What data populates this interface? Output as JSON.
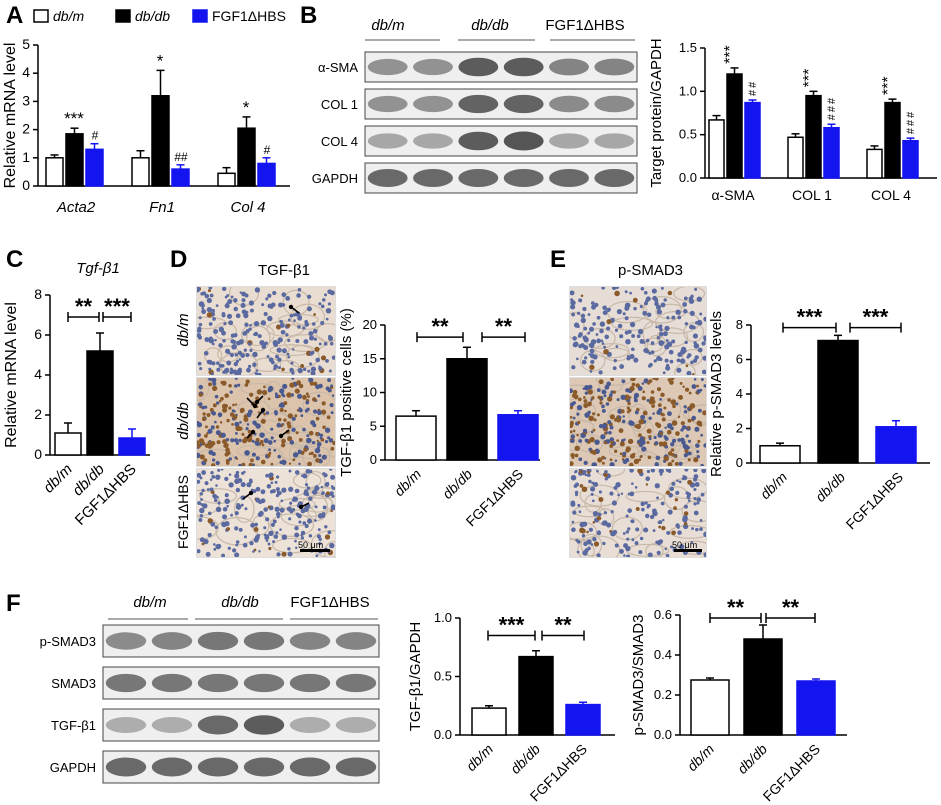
{
  "panels": {
    "A": {
      "letter": "A",
      "legend": [
        "db/m",
        "db/db",
        "FGF1ΔHBS"
      ],
      "genes": [
        "Acta2",
        "Fn1",
        "Col 4"
      ],
      "ylabel": "Relative mRNA level",
      "yticks": [
        "0",
        "1",
        "2",
        "3",
        "4",
        "5"
      ],
      "sig_star": [
        "***",
        "*",
        "*"
      ],
      "sig_hash": [
        "#",
        "##",
        "#"
      ]
    },
    "B": {
      "letter": "B",
      "groups": [
        "db/m",
        "db/db",
        "FGF1ΔHBS"
      ],
      "proteins": [
        "α-SMA",
        "COL 1",
        "COL 4",
        "GAPDH"
      ],
      "ylabel": "Target protein/GAPDH",
      "yticks": [
        "0.0",
        "0.5",
        "1.0",
        "1.5"
      ],
      "categories": [
        "α-SMA",
        "COL 1",
        "COL 4"
      ],
      "sig_star": [
        "***",
        "***",
        "***"
      ],
      "sig_hash": [
        "##",
        "###",
        "###"
      ]
    },
    "C": {
      "letter": "C",
      "title": "Tgf-β1",
      "ylabel": "Relative mRNA level",
      "yticks": [
        "0",
        "2",
        "4",
        "6",
        "8"
      ],
      "xlabels": [
        "db/m",
        "db/db",
        "FGF1ΔHBS"
      ],
      "sig": [
        "**",
        "***"
      ]
    },
    "D": {
      "letter": "D",
      "title": "TGF-β1",
      "row_labels": [
        "db/m",
        "db/db",
        "FGF1ΔHBS"
      ],
      "scale": "50 μm",
      "ylabel": "TGF-β1 positive cells (%)",
      "yticks": [
        "0",
        "5",
        "10",
        "15",
        "20"
      ],
      "xlabels": [
        "db/m",
        "db/db",
        "FGF1ΔHBS"
      ],
      "sig": [
        "**",
        "**"
      ]
    },
    "E": {
      "letter": "E",
      "title": "p-SMAD3",
      "scale": "50 μm",
      "ylabel": "Relative p-SMAD3 levels",
      "yticks": [
        "0",
        "2",
        "4",
        "6",
        "8"
      ],
      "xlabels": [
        "db/m",
        "db/db",
        "FGF1ΔHBS"
      ],
      "sig": [
        "***",
        "***"
      ]
    },
    "F": {
      "letter": "F",
      "groups": [
        "db/m",
        "db/db",
        "FGF1ΔHBS"
      ],
      "proteins": [
        "p-SMAD3",
        "SMAD3",
        "TGF-β1",
        "GAPDH"
      ],
      "chart1": {
        "ylabel": "TGF-β1/GAPDH",
        "yticks": [
          "0.0",
          "0.5",
          "1.0"
        ],
        "xlabels": [
          "db/m",
          "db/db",
          "FGF1ΔHBS"
        ],
        "sig": [
          "***",
          "**"
        ]
      },
      "chart2": {
        "ylabel": "p-SMAD3/SMAD3",
        "yticks": [
          "0.0",
          "0.2",
          "0.4",
          "0.6"
        ],
        "xlabels": [
          "db/m",
          "db/db",
          "FGF1ΔHBS"
        ],
        "sig": [
          "**",
          "**"
        ]
      }
    }
  },
  "colors": {
    "dbm": "#ffffff",
    "dbdb": "#000000",
    "fgf1": "#1414f0"
  },
  "chart_data": [
    {
      "id": "A",
      "type": "bar",
      "categories": [
        "Acta2",
        "Fn1",
        "Col 4"
      ],
      "ylabel": "Relative mRNA level",
      "ylim": [
        0,
        5
      ],
      "series": [
        {
          "name": "db/m",
          "values": [
            1.0,
            1.0,
            0.45
          ],
          "errors": [
            0.1,
            0.25,
            0.2
          ]
        },
        {
          "name": "db/db",
          "values": [
            1.85,
            3.2,
            2.05
          ],
          "errors": [
            0.2,
            0.9,
            0.4
          ]
        },
        {
          "name": "FGF1ΔHBS",
          "values": [
            1.3,
            0.6,
            0.8
          ],
          "errors": [
            0.2,
            0.15,
            0.2
          ]
        }
      ]
    },
    {
      "id": "B",
      "type": "bar",
      "categories": [
        "α-SMA",
        "COL 1",
        "COL 4"
      ],
      "ylabel": "Target protein/GAPDH",
      "ylim": [
        0,
        1.5
      ],
      "series": [
        {
          "name": "db/m",
          "values": [
            0.67,
            0.47,
            0.33
          ],
          "errors": [
            0.05,
            0.04,
            0.04
          ]
        },
        {
          "name": "db/db",
          "values": [
            1.2,
            0.95,
            0.87
          ],
          "errors": [
            0.07,
            0.05,
            0.04
          ]
        },
        {
          "name": "FGF1ΔHBS",
          "values": [
            0.87,
            0.58,
            0.43
          ],
          "errors": [
            0.03,
            0.04,
            0.03
          ]
        }
      ]
    },
    {
      "id": "C",
      "type": "bar",
      "categories": [
        "db/m",
        "db/db",
        "FGF1ΔHBS"
      ],
      "values": [
        1.1,
        5.2,
        0.85
      ],
      "errors": [
        0.5,
        0.9,
        0.45
      ],
      "ylabel": "Relative mRNA level",
      "ylim": [
        0,
        8
      ]
    },
    {
      "id": "D",
      "type": "bar",
      "categories": [
        "db/m",
        "db/db",
        "FGF1ΔHBS"
      ],
      "values": [
        6.5,
        15.0,
        6.7
      ],
      "errors": [
        0.8,
        1.7,
        0.6
      ],
      "ylabel": "TGF-β1 positive cells (%)",
      "ylim": [
        0,
        20
      ]
    },
    {
      "id": "E",
      "type": "bar",
      "categories": [
        "db/m",
        "db/db",
        "FGF1ΔHBS"
      ],
      "values": [
        1.0,
        7.1,
        2.1
      ],
      "errors": [
        0.15,
        0.3,
        0.35
      ],
      "ylabel": "Relative p-SMAD3 levels",
      "ylim": [
        0,
        8
      ]
    },
    {
      "id": "F1",
      "type": "bar",
      "categories": [
        "db/m",
        "db/db",
        "FGF1ΔHBS"
      ],
      "values": [
        0.23,
        0.67,
        0.26
      ],
      "errors": [
        0.02,
        0.05,
        0.02
      ],
      "ylabel": "TGF-β1/GAPDH",
      "ylim": [
        0,
        1.0
      ]
    },
    {
      "id": "F2",
      "type": "bar",
      "categories": [
        "db/m",
        "db/db",
        "FGF1ΔHBS"
      ],
      "values": [
        0.275,
        0.48,
        0.27
      ],
      "errors": [
        0.01,
        0.07,
        0.01
      ],
      "ylabel": "p-SMAD3/SMAD3",
      "ylim": [
        0,
        0.6
      ]
    }
  ]
}
